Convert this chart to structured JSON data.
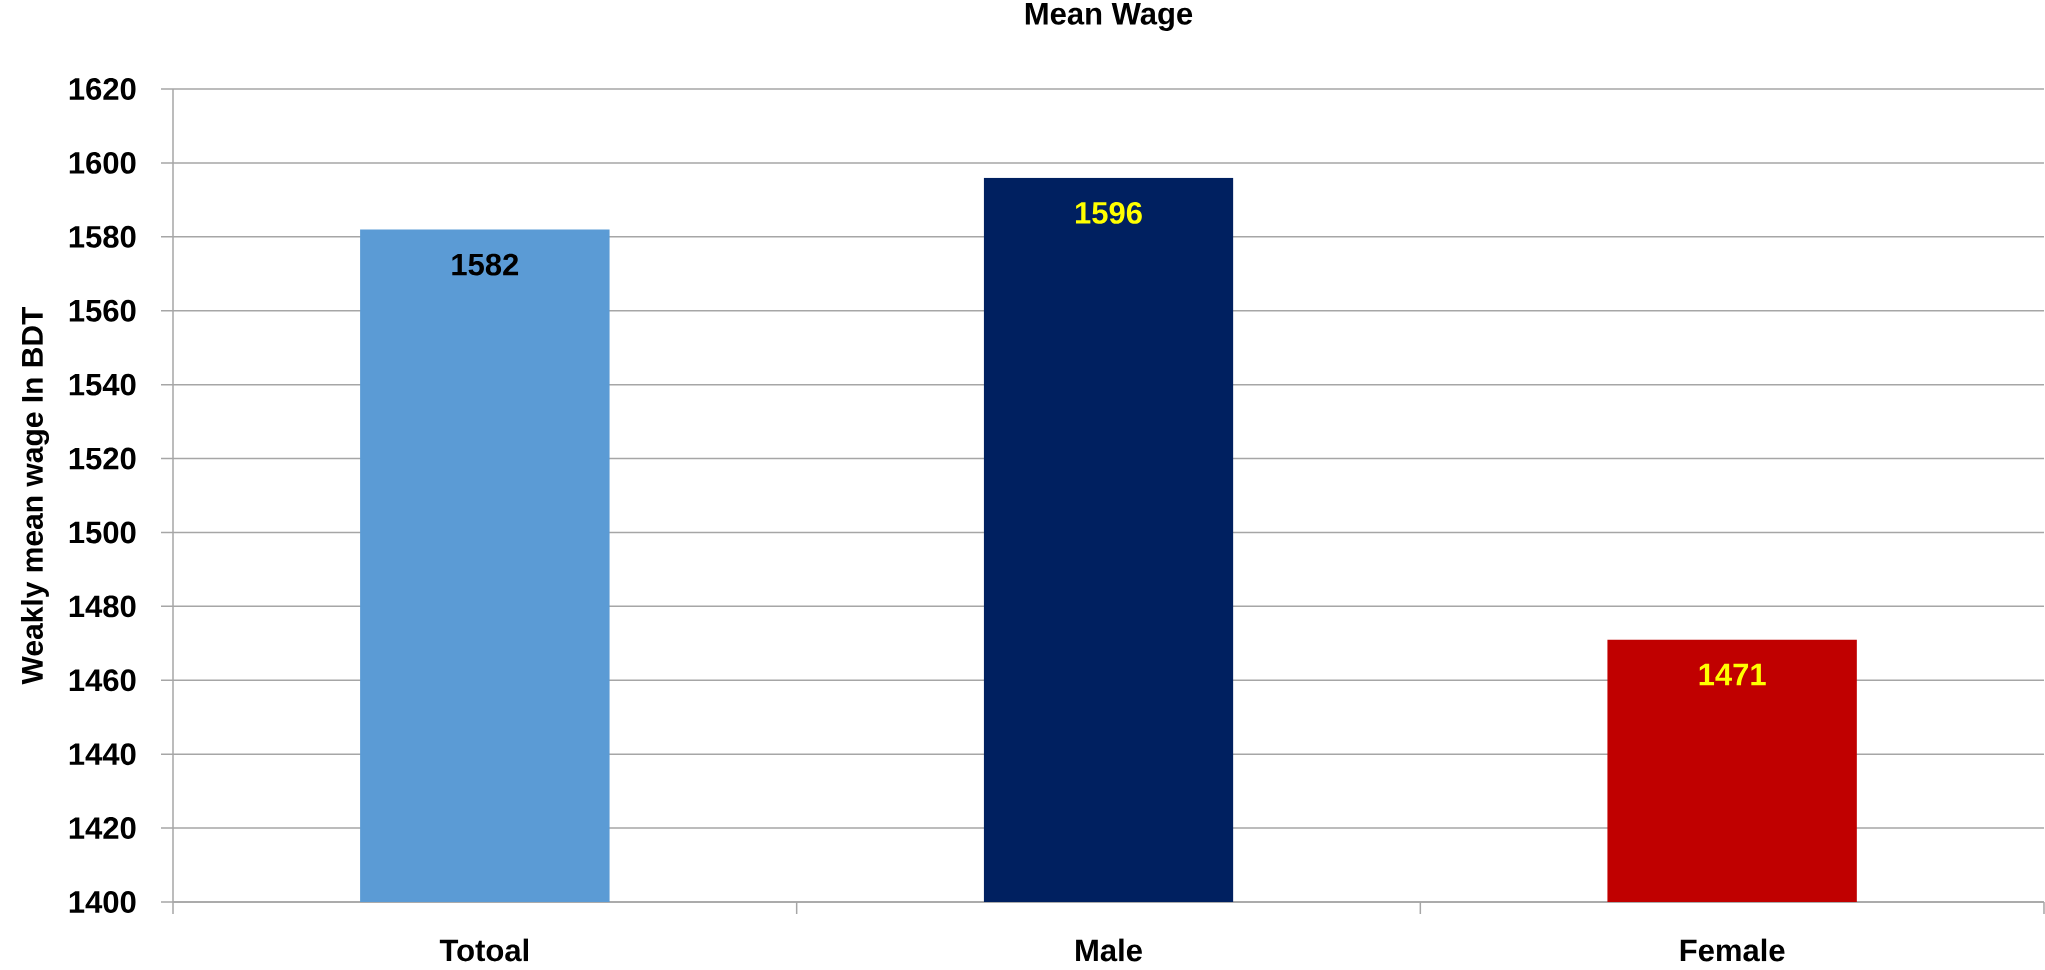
{
  "chart_data": {
    "type": "bar",
    "title": "Mean Wage",
    "ylabel": "Weakly mean wage In BDT",
    "categories": [
      "Totoal",
      "Male",
      "Female"
    ],
    "values": [
      1582,
      1596,
      1471
    ],
    "colors": [
      "#5b9bd5",
      "#002060",
      "#c00000"
    ],
    "ylim": [
      1400,
      1620
    ],
    "yticks": [
      1400,
      1420,
      1440,
      1460,
      1480,
      1500,
      1520,
      1540,
      1560,
      1580,
      1600,
      1620
    ],
    "grid": "y",
    "data_labels": true
  }
}
